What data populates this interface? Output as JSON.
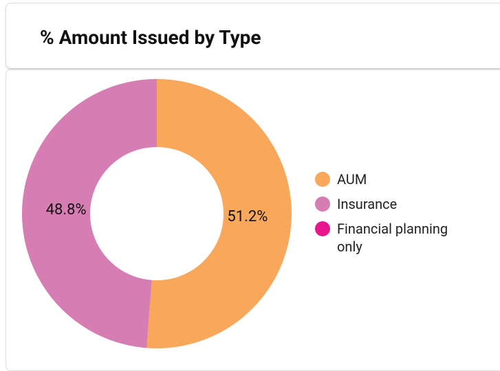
{
  "chart_data": {
    "type": "donut",
    "title": "% Amount Issued by Type",
    "categories": [
      "AUM",
      "Insurance",
      "Financial planning only"
    ],
    "values": [
      51.2,
      48.8,
      0
    ],
    "value_labels": [
      "51.2%",
      "48.8%",
      null
    ],
    "colors": [
      "#f9a75a",
      "#d67db3",
      "#e8168c"
    ],
    "legend": "right"
  }
}
